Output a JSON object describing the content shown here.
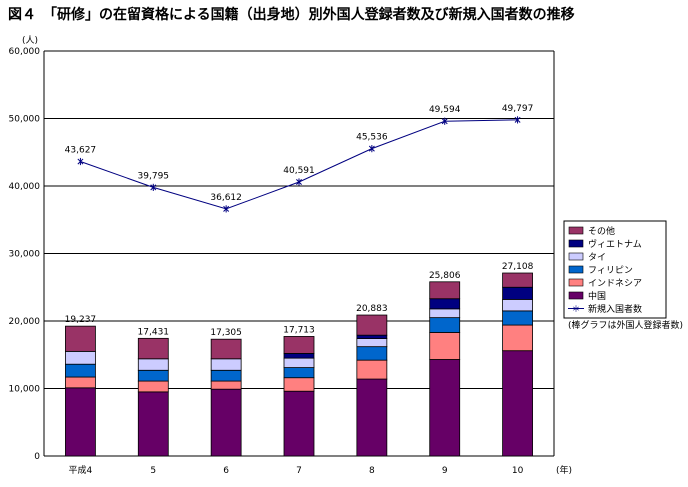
{
  "chart_data": {
    "type": "bar",
    "title": "図４　「研修」の在留資格による国籍（出身地）別外国人登録者数及び新規入国者数の推移",
    "y_unit": "(人)",
    "x_unit": "(年)",
    "ylim": [
      0,
      60000
    ],
    "y_ticks": [
      "0",
      "10,000",
      "20,000",
      "30,000",
      "40,000",
      "50,000",
      "60,000"
    ],
    "categories": [
      "平成4",
      "5",
      "6",
      "7",
      "8",
      "9",
      "10"
    ],
    "stacked": true,
    "grid": true,
    "series": [
      {
        "name": "中国",
        "color": "#660066",
        "values": [
          10100,
          9500,
          9900,
          9600,
          11400,
          14300,
          15600
        ]
      },
      {
        "name": "インドネシア",
        "color": "#ff8080",
        "values": [
          1600,
          1600,
          1200,
          2000,
          2800,
          4000,
          3800
        ]
      },
      {
        "name": "フィリピン",
        "color": "#0066cc",
        "values": [
          1900,
          1600,
          1600,
          1500,
          2000,
          2200,
          2100
        ]
      },
      {
        "name": "タイ",
        "color": "#ccccff",
        "values": [
          1900,
          1700,
          1700,
          1400,
          1200,
          1300,
          1700
        ]
      },
      {
        "name": "ヴィエトナム",
        "color": "#000080",
        "values": [
          0,
          0,
          0,
          700,
          500,
          1500,
          1800
        ]
      },
      {
        "name": "その他",
        "color": "#993366",
        "values": [
          3737,
          3031,
          2905,
          2513,
          2983,
          2506,
          2108
        ]
      }
    ],
    "bar_totals": [
      "19,237",
      "17,431",
      "17,305",
      "17,713",
      "20,883",
      "25,806",
      "27,108"
    ],
    "line": {
      "name": "新規入国者数",
      "color": "#000080",
      "values": [
        43627,
        39795,
        36612,
        40591,
        45536,
        49594,
        49797
      ],
      "labels": [
        "43,627",
        "39,795",
        "36,612",
        "40,591",
        "45,536",
        "49,594",
        "49,797"
      ]
    },
    "legend_order": [
      "その他",
      "ヴィエトナム",
      "タイ",
      "フィリピン",
      "インドネシア",
      "中国",
      "新規入国者数"
    ],
    "legend_placement": "right",
    "note": "(棒グラフは外国人登録者数)"
  }
}
